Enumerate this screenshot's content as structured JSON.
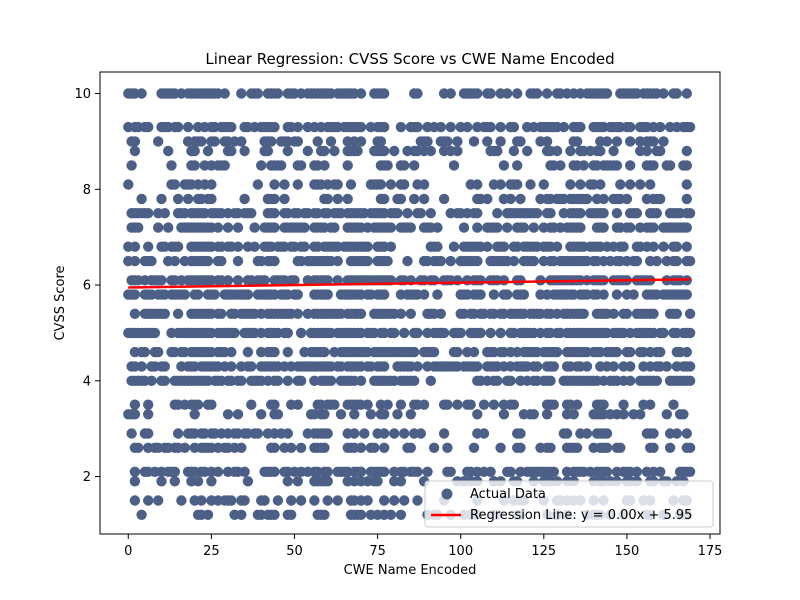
{
  "chart_data": {
    "type": "scatter",
    "title": "Linear Regression: CVSS Score vs CWE Name Encoded",
    "xlabel": "CWE Name Encoded",
    "ylabel": "CVSS Score",
    "xlim": [
      -8.5,
      178
    ],
    "ylim": [
      0.8,
      10.45
    ],
    "xticks": [
      0,
      25,
      50,
      75,
      100,
      125,
      150,
      175
    ],
    "yticks": [
      2,
      4,
      6,
      8,
      10
    ],
    "xtick_labels": [
      "0",
      "25",
      "50",
      "75",
      "100",
      "125",
      "150",
      "175"
    ],
    "ytick_labels": [
      "2",
      "4",
      "6",
      "8",
      "10"
    ],
    "grid": false,
    "legend_position": "lower-right",
    "series": [
      {
        "name": "Actual Data",
        "kind": "scatter",
        "color": "#4c5f87",
        "x_range": [
          0,
          169
        ],
        "score_levels": [
          1.2,
          1.5,
          1.9,
          2.1,
          2.6,
          2.9,
          3.3,
          3.5,
          4.0,
          4.3,
          4.6,
          5.0,
          5.4,
          5.8,
          6.1,
          6.5,
          6.8,
          7.2,
          7.5,
          7.8,
          8.1,
          8.5,
          8.8,
          9.0,
          9.3,
          10.0
        ]
      },
      {
        "name": "Regression Line: y = 0.00x + 5.95",
        "kind": "line",
        "color": "#ff0000",
        "slope": 0.001,
        "intercept": 5.95,
        "x_range": [
          0,
          169
        ]
      }
    ]
  }
}
